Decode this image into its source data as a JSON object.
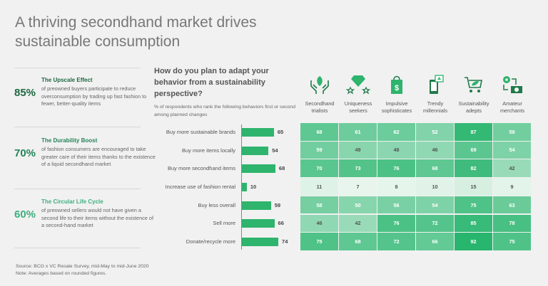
{
  "title": "A thriving secondhand market drives sustainable consumption",
  "stats": [
    {
      "pct": "85%",
      "heading": "The Upscale Effect",
      "body": "of preowned buyers participate to reduce overconsumption by trading up fast fashion to fewer, better-quality items",
      "color": "#1d6841"
    },
    {
      "pct": "70%",
      "heading": "The Durability Boost",
      "body": "of fashion consumers are encouraged to take greater care of their items thanks to the existence of a liquid secondhand market",
      "color": "#24855a"
    },
    {
      "pct": "60%",
      "heading": "The Circular Life Cycle",
      "body": "of preowned sellers would not have given a second life to their items without the existence of a second-hand market",
      "color": "#3caf7e"
    }
  ],
  "chart_data": {
    "type": "table",
    "title": "How do you plan to adapt your behavior from a sustainability perspective?",
    "subtitle": "% of respondents who rank the following behaviors first or second among planned changes",
    "categories": [
      "Buy more sustainable brands",
      "Buy more items locally",
      "Buy more secondhand items",
      "Increase use of fashion rental",
      "Buy less overall",
      "Sell more",
      "Donate/recycle more"
    ],
    "values": [
      65,
      54,
      68,
      10,
      59,
      66,
      74
    ],
    "segments": [
      {
        "name": "Secondhand trialists",
        "icon": "hands-leaf-icon",
        "values": [
          68,
          59,
          70,
          11,
          58,
          46,
          75
        ]
      },
      {
        "name": "Uniqueness seekers",
        "icon": "diamond-stars-icon",
        "values": [
          61,
          49,
          73,
          7,
          50,
          42,
          68
        ]
      },
      {
        "name": "Impulsive sophisticates",
        "icon": "shopping-bag-dollar-icon",
        "values": [
          62,
          48,
          76,
          8,
          56,
          76,
          72
        ]
      },
      {
        "name": "Trendy millennials",
        "icon": "phone-chat-icon",
        "values": [
          52,
          46,
          68,
          10,
          54,
          72,
          66
        ]
      },
      {
        "name": "Sustainability adepts",
        "icon": "cart-leaf-icon",
        "values": [
          87,
          69,
          82,
          15,
          75,
          85,
          92
        ]
      },
      {
        "name": "Amateur merchants",
        "icon": "gear-money-icon",
        "values": [
          59,
          54,
          42,
          9,
          63,
          78,
          75
        ]
      }
    ],
    "bar_color": "#2eb46d",
    "xlim": [
      0,
      100
    ]
  },
  "footer": {
    "source": "Source: BCG x VC Resale Survey, mid-May to mid-June 2020",
    "note": "Note: Averages based on rounded figures."
  }
}
